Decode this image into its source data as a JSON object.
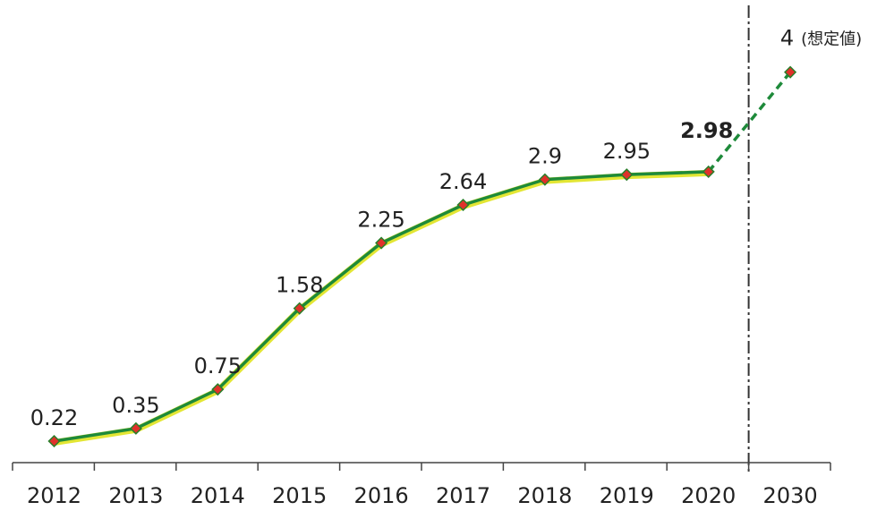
{
  "chart_data": {
    "type": "line",
    "title": "",
    "xlabel": "",
    "ylabel": "",
    "ylim": [
      0,
      4.4
    ],
    "grid": false,
    "legend": "none",
    "categories": [
      "2012",
      "2013",
      "2014",
      "2015",
      "2016",
      "2017",
      "2018",
      "2019",
      "2020",
      "2030"
    ],
    "series": [
      {
        "values": [
          0.22,
          0.35,
          0.75,
          1.58,
          2.25,
          2.64,
          2.9,
          2.95,
          2.98,
          4
        ],
        "labels": [
          "0.22",
          "0.35",
          "0.75",
          "1.58",
          "2.25",
          "2.64",
          "2.9",
          "2.95",
          "2.98",
          "4"
        ],
        "projected_from_index": 8,
        "highlight_index": 8
      }
    ],
    "annotations": {
      "projection_note": "(想定値)"
    },
    "divider_between": [
      "2020",
      "2030"
    ]
  },
  "colors": {
    "line": "#1e8a3a",
    "line_halo": "#e3e634",
    "marker": "#e0312a",
    "marker_edge": "#2a7f2a",
    "highlight_text": "#d8193a",
    "axis": "#444444",
    "divider": "#333333"
  }
}
